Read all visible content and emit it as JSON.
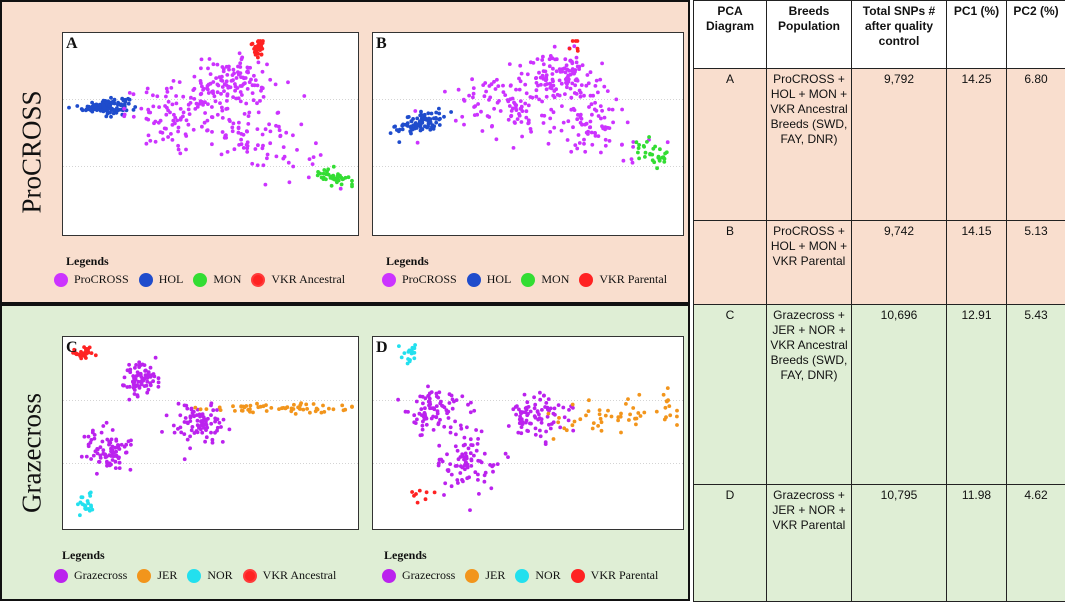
{
  "groups": {
    "top": "ProCROSS",
    "bottom": "Grazecross"
  },
  "colors": {
    "procross": "#cc33ff",
    "hol": "#1f4ccc",
    "mon": "#33dd33",
    "vkr": "#ff2222",
    "grazecross": "#bb22ee",
    "jer": "#f2951c",
    "nor": "#22e0ee",
    "bg_top": "#f9dece",
    "bg_bottom": "#dfeed5"
  },
  "legend_title": "Legends",
  "legends": {
    "A": [
      {
        "label": "ProCROSS",
        "color": "#cc33ff",
        "ring": false
      },
      {
        "label": "HOL",
        "color": "#1f4ccc",
        "ring": false
      },
      {
        "label": "MON",
        "color": "#33dd33",
        "ring": false
      },
      {
        "label": "VKR Ancestral",
        "color": "#ff2222",
        "ring": true
      }
    ],
    "B": [
      {
        "label": "ProCROSS",
        "color": "#cc33ff",
        "ring": false
      },
      {
        "label": "HOL",
        "color": "#1f4ccc",
        "ring": false
      },
      {
        "label": "MON",
        "color": "#33dd33",
        "ring": false
      },
      {
        "label": "VKR Parental",
        "color": "#ff2222",
        "ring": false
      }
    ],
    "C": [
      {
        "label": "Grazecross",
        "color": "#bb22ee",
        "ring": false
      },
      {
        "label": "JER",
        "color": "#f2951c",
        "ring": false
      },
      {
        "label": "NOR",
        "color": "#22e0ee",
        "ring": false
      },
      {
        "label": "VKR Ancestral",
        "color": "#ff2222",
        "ring": true
      }
    ],
    "D": [
      {
        "label": "Grazecross",
        "color": "#bb22ee",
        "ring": false
      },
      {
        "label": "JER",
        "color": "#f2951c",
        "ring": false
      },
      {
        "label": "NOR",
        "color": "#22e0ee",
        "ring": false
      },
      {
        "label": "VKR Parental",
        "color": "#ff2222",
        "ring": false
      }
    ]
  },
  "chart_data": [
    {
      "type": "scatter",
      "title": "A",
      "xlim": [
        0,
        100
      ],
      "ylim": [
        0,
        100
      ],
      "series": [
        {
          "name": "HOL",
          "color": "#1f4ccc",
          "n": 130,
          "clusters": [
            [
              13,
              65,
              4,
              2,
              0.22
            ]
          ]
        },
        {
          "name": "ProCROSS",
          "color": "#cc33ff",
          "n": 300,
          "clusters": [
            [
              38,
              60,
              9,
              8,
              0
            ],
            [
              66,
              52,
              10,
              12,
              -0.3
            ],
            [
              58,
              78,
              7,
              6,
              0
            ]
          ]
        },
        {
          "name": "MON",
          "color": "#33dd33",
          "n": 40,
          "clusters": [
            [
              93,
              27,
              3,
              3,
              -0.6
            ]
          ]
        },
        {
          "name": "VKR Ancestral",
          "color": "#ff2222",
          "n": 30,
          "clusters": [
            [
              67,
              97,
              1.2,
              3,
              0
            ]
          ]
        }
      ]
    },
    {
      "type": "scatter",
      "title": "B",
      "xlim": [
        0,
        100
      ],
      "ylim": [
        0,
        100
      ],
      "series": [
        {
          "name": "HOL",
          "color": "#1f4ccc",
          "n": 90,
          "clusters": [
            [
              14,
              56,
              4,
              3,
              0.35
            ]
          ]
        },
        {
          "name": "ProCROSS",
          "color": "#cc33ff",
          "n": 300,
          "clusters": [
            [
              42,
              66,
              9,
              9,
              0
            ],
            [
              70,
              58,
              10,
              12,
              -0.3
            ],
            [
              60,
              82,
              6,
              6,
              0
            ]
          ]
        },
        {
          "name": "MON",
          "color": "#33dd33",
          "n": 30,
          "clusters": [
            [
              92,
              40,
              3,
              3,
              -0.6
            ]
          ]
        },
        {
          "name": "VKR Parental",
          "color": "#ff2222",
          "n": 6,
          "clusters": [
            [
              66,
              98,
              2,
              4,
              0
            ]
          ]
        }
      ]
    },
    {
      "type": "scatter",
      "title": "C",
      "xlim": [
        0,
        100
      ],
      "ylim": [
        0,
        100
      ],
      "series": [
        {
          "name": "VKR Ancestral",
          "color": "#ff2222",
          "n": 30,
          "clusters": [
            [
              6,
              96,
              3,
              2,
              0
            ]
          ]
        },
        {
          "name": "Grazecross",
          "color": "#bb22ee",
          "n": 250,
          "clusters": [
            [
              25,
              80,
              3,
              5,
              0
            ],
            [
              14,
              40,
              4,
              6,
              0
            ],
            [
              46,
              55,
              5,
              6,
              0
            ]
          ]
        },
        {
          "name": "JER",
          "color": "#f2951c",
          "n": 60,
          "clusters": [
            [
              75,
              64,
              13,
              1.5,
              0
            ]
          ]
        },
        {
          "name": "NOR",
          "color": "#22e0ee",
          "n": 20,
          "clusters": [
            [
              6,
              9,
              2,
              4,
              0
            ]
          ]
        }
      ]
    },
    {
      "type": "scatter",
      "title": "D",
      "xlim": [
        0,
        100
      ],
      "ylim": [
        0,
        100
      ],
      "series": [
        {
          "name": "NOR",
          "color": "#22e0ee",
          "n": 18,
          "clusters": [
            [
              10,
              95,
              2,
              3,
              0
            ]
          ]
        },
        {
          "name": "Grazecross",
          "color": "#bb22ee",
          "n": 250,
          "clusters": [
            [
              18,
              62,
              5,
              7,
              0
            ],
            [
              30,
              33,
              5,
              8,
              0
            ],
            [
              53,
              60,
              5,
              7,
              0
            ]
          ]
        },
        {
          "name": "JER",
          "color": "#f2951c",
          "n": 55,
          "clusters": [
            [
              81,
              60,
              12,
              6,
              0.45
            ]
          ]
        },
        {
          "name": "VKR Parental",
          "color": "#ff2222",
          "n": 8,
          "clusters": [
            [
              14,
              14,
              2,
              7,
              0
            ]
          ]
        }
      ]
    }
  ],
  "table": {
    "headers": [
      "PCA Diagram",
      "Breeds Population",
      "Total SNPs # after quality control",
      "PC1 (%)",
      "PC2 (%)"
    ],
    "rows": [
      {
        "diagram": "A",
        "breeds": "ProCROSS + HOL + MON + VKR Ancestral Breeds (SWD, FAY, DNR)",
        "snps": "9,792",
        "pc1": "14.25",
        "pc2": "6.80"
      },
      {
        "diagram": "B",
        "breeds": "ProCROSS + HOL + MON + VKR Parental",
        "snps": "9,742",
        "pc1": "14.15",
        "pc2": "5.13"
      },
      {
        "diagram": "C",
        "breeds": "Grazecross + JER + NOR + VKR Ancestral Breeds (SWD, FAY, DNR)",
        "snps": "10,696",
        "pc1": "12.91",
        "pc2": "5.43"
      },
      {
        "diagram": "D",
        "breeds": "Grazecross + JER + NOR + VKR Parental",
        "snps": "10,795",
        "pc1": "11.98",
        "pc2": "4.62"
      }
    ]
  }
}
